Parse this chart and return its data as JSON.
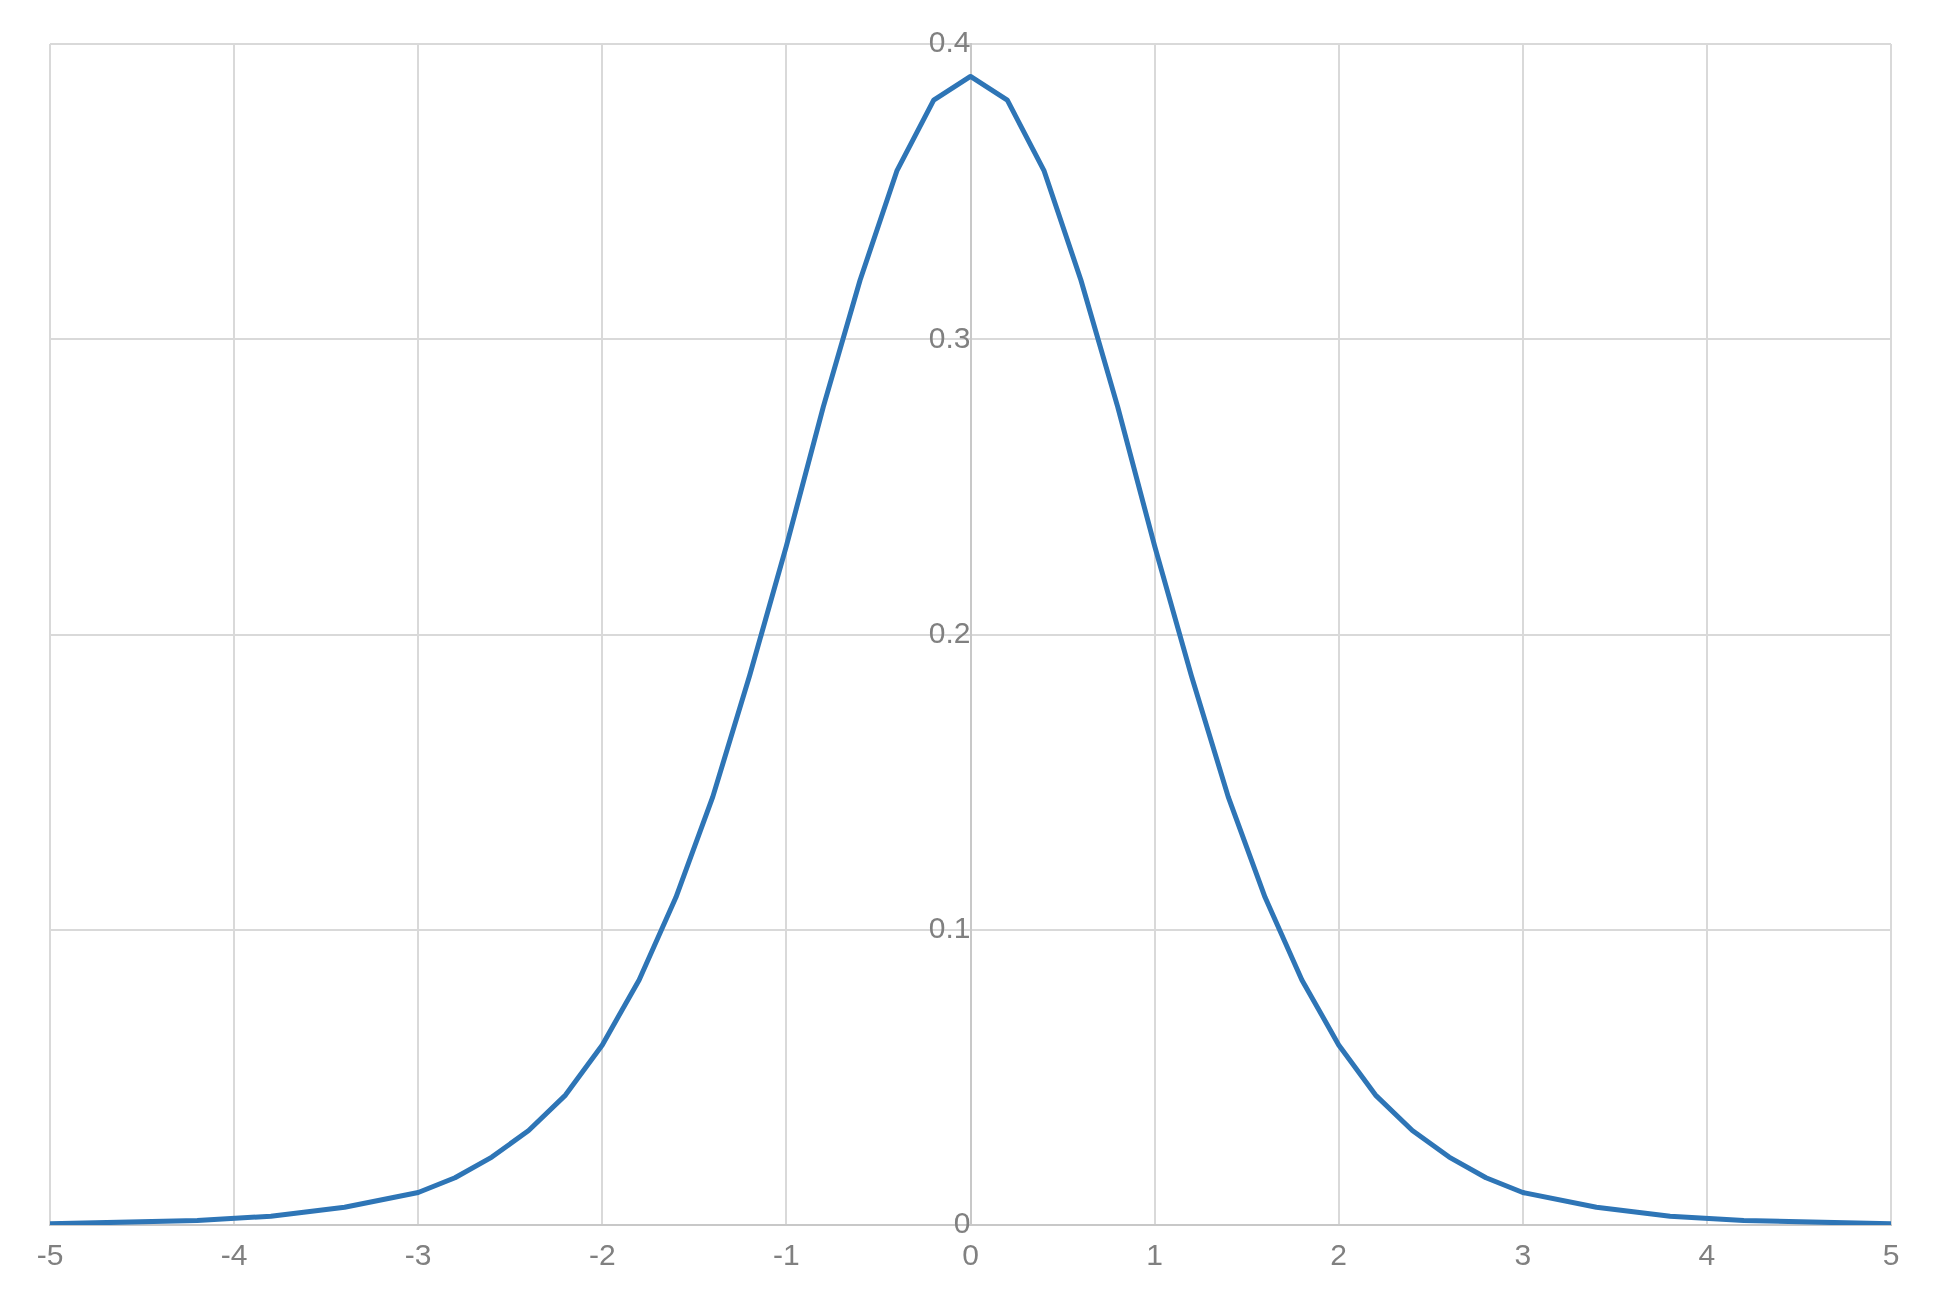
{
  "chart_data": {
    "type": "line",
    "x": [
      -5,
      -4.2,
      -3.8,
      -3.4,
      -3,
      -2.8,
      -2.6,
      -2.4,
      -2.2,
      -2,
      -1.8,
      -1.6,
      -1.4,
      -1.2,
      -1,
      -0.8,
      -0.6,
      -0.4,
      -0.2,
      0,
      0.2,
      0.4,
      0.6,
      0.8,
      1,
      1.2,
      1.4,
      1.6,
      1.8,
      2,
      2.2,
      2.4,
      2.6,
      2.8,
      3,
      3.4,
      3.8,
      4.2,
      5
    ],
    "series": [
      {
        "color": "#2e75b6",
        "values": [
          0.0004,
          0.0015,
          0.003,
          0.006,
          0.011,
          0.016,
          0.023,
          0.032,
          0.044,
          0.061,
          0.083,
          0.111,
          0.145,
          0.186,
          0.23,
          0.277,
          0.32,
          0.357,
          0.381,
          0.389,
          0.381,
          0.357,
          0.32,
          0.277,
          0.23,
          0.186,
          0.145,
          0.111,
          0.083,
          0.061,
          0.044,
          0.032,
          0.023,
          0.016,
          0.011,
          0.006,
          0.003,
          0.0015,
          0.0004
        ]
      }
    ],
    "xlim": [
      -5,
      5
    ],
    "ylim": [
      0,
      0.4
    ],
    "xticks": [
      -5,
      -4,
      -3,
      -2,
      -1,
      0,
      1,
      2,
      3,
      4,
      5
    ],
    "yticks": [
      0,
      0.1,
      0.2,
      0.3,
      0.4
    ],
    "grid": true,
    "marker": "none",
    "line_style": "solid"
  }
}
